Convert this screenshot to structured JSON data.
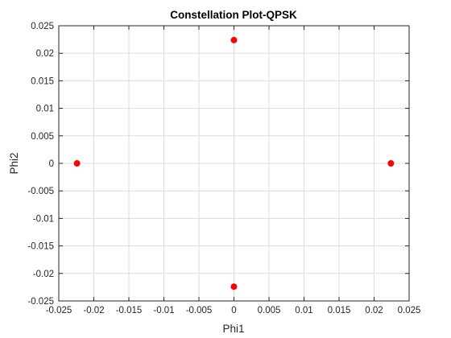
{
  "chart_data": {
    "type": "scatter",
    "title": "Constellation Plot-QPSK",
    "xlabel": "Phi1",
    "ylabel": "Phi2",
    "xlim": [
      -0.025,
      0.025
    ],
    "ylim": [
      -0.025,
      0.025
    ],
    "xticks": [
      -0.025,
      -0.02,
      -0.015,
      -0.01,
      -0.005,
      0,
      0.005,
      0.01,
      0.015,
      0.02,
      0.025
    ],
    "yticks": [
      -0.025,
      -0.02,
      -0.015,
      -0.01,
      -0.005,
      0,
      0.005,
      0.01,
      0.015,
      0.02,
      0.025
    ],
    "xtick_labels": [
      "-0.025",
      "-0.02",
      "-0.015",
      "-0.01",
      "-0.005",
      "0",
      "0.005",
      "0.01",
      "0.015",
      "0.02",
      "0.025"
    ],
    "ytick_labels": [
      "-0.025",
      "-0.02",
      "-0.015",
      "-0.01",
      "-0.005",
      "0",
      "0.005",
      "0.01",
      "0.015",
      "0.02",
      "0.025"
    ],
    "grid": true,
    "series": [
      {
        "marker_color": "#ff0000",
        "points": [
          {
            "x": 0.0224,
            "y": 0
          },
          {
            "x": 0,
            "y": 0.0224
          },
          {
            "x": -0.0224,
            "y": 0
          },
          {
            "x": 0,
            "y": -0.0224
          }
        ]
      }
    ]
  }
}
